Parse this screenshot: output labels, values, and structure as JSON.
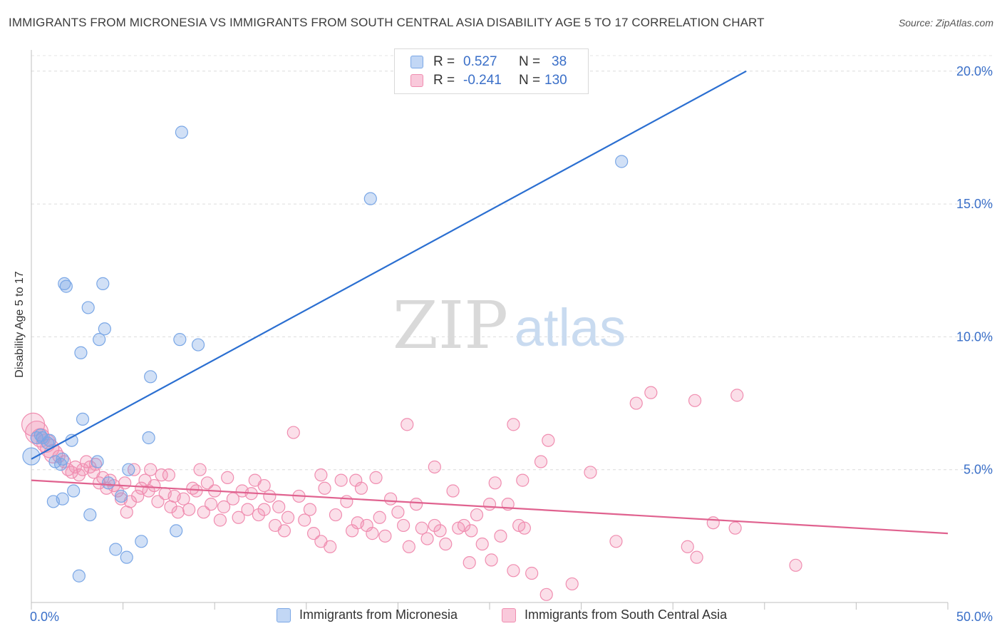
{
  "title": "IMMIGRANTS FROM MICRONESIA VS IMMIGRANTS FROM SOUTH CENTRAL ASIA DISABILITY AGE 5 TO 17 CORRELATION CHART",
  "source": "Source: ZipAtlas.com",
  "watermark": {
    "zip": "ZIP",
    "atlas": "atlas"
  },
  "legend_top": {
    "r_label": "R =",
    "n_label": "N =",
    "rows": [
      {
        "r": "0.527",
        "n": "38"
      },
      {
        "r": "-0.241",
        "n": "130"
      }
    ]
  },
  "chart_data": {
    "type": "scatter",
    "xlabel": "",
    "ylabel": "Disability Age 5 to 17",
    "xlim": [
      0,
      50
    ],
    "ylim": [
      0,
      20.8
    ],
    "x_ticks_labeled": [
      "0.0%",
      "50.0%"
    ],
    "y_ticks": [
      5,
      10,
      15,
      20
    ],
    "y_tick_labels": [
      "5.0%",
      "10.0%",
      "15.0%",
      "20.0%"
    ],
    "grid": "horizontal dashed",
    "legend_position": "bottom-center",
    "colors": {
      "micronesia": "#7aa7e6",
      "south_central_asia": "#f08db0",
      "micronesia_line": "#2b6fd1",
      "sca_line": "#e0628f"
    },
    "series": [
      {
        "name": "Immigrants from Micronesia",
        "color": "#7aa7e6",
        "trendline": {
          "x": [
            0,
            39
          ],
          "y": [
            5.4,
            20.0
          ]
        },
        "points": [
          [
            0.0,
            5.5
          ],
          [
            0.3,
            6.2
          ],
          [
            0.6,
            6.2
          ],
          [
            0.9,
            6.0
          ],
          [
            1.3,
            5.3
          ],
          [
            1.6,
            5.2
          ],
          [
            1.7,
            5.4
          ],
          [
            1.8,
            12.0
          ],
          [
            1.9,
            11.9
          ],
          [
            2.2,
            6.1
          ],
          [
            2.3,
            4.2
          ],
          [
            1.2,
            3.8
          ],
          [
            1.7,
            3.9
          ],
          [
            2.6,
            1.0
          ],
          [
            2.7,
            9.4
          ],
          [
            2.8,
            6.9
          ],
          [
            3.1,
            11.1
          ],
          [
            3.2,
            3.3
          ],
          [
            3.6,
            5.3
          ],
          [
            3.7,
            9.9
          ],
          [
            3.9,
            12.0
          ],
          [
            4.0,
            10.3
          ],
          [
            4.2,
            4.5
          ],
          [
            4.6,
            2.0
          ],
          [
            4.9,
            4.0
          ],
          [
            5.2,
            1.7
          ],
          [
            5.3,
            5.0
          ],
          [
            6.0,
            2.3
          ],
          [
            6.4,
            6.2
          ],
          [
            6.5,
            8.5
          ],
          [
            7.9,
            2.7
          ],
          [
            8.1,
            9.9
          ],
          [
            8.2,
            17.7
          ],
          [
            9.1,
            9.7
          ],
          [
            18.5,
            15.2
          ],
          [
            32.2,
            16.6
          ],
          [
            1.0,
            6.1
          ],
          [
            0.5,
            6.3
          ]
        ]
      },
      {
        "name": "Immigrants from South Central Asia",
        "color": "#f08db0",
        "trendline": {
          "x": [
            0,
            50
          ],
          "y": [
            4.6,
            2.6
          ]
        },
        "points": [
          [
            0.1,
            6.7
          ],
          [
            0.3,
            6.4
          ],
          [
            0.5,
            6.2
          ],
          [
            0.8,
            6.0
          ],
          [
            1.0,
            5.8
          ],
          [
            1.2,
            5.6
          ],
          [
            1.5,
            5.5
          ],
          [
            1.8,
            5.3
          ],
          [
            2.0,
            5.0
          ],
          [
            2.2,
            4.9
          ],
          [
            2.4,
            5.1
          ],
          [
            2.6,
            4.8
          ],
          [
            2.8,
            5.0
          ],
          [
            3.0,
            5.3
          ],
          [
            3.2,
            5.1
          ],
          [
            3.4,
            4.9
          ],
          [
            3.5,
            5.2
          ],
          [
            3.7,
            4.5
          ],
          [
            3.9,
            4.7
          ],
          [
            4.1,
            4.3
          ],
          [
            4.3,
            4.6
          ],
          [
            4.5,
            4.4
          ],
          [
            4.7,
            4.2
          ],
          [
            4.9,
            3.9
          ],
          [
            5.1,
            4.5
          ],
          [
            5.2,
            3.4
          ],
          [
            5.4,
            3.8
          ],
          [
            5.6,
            5.0
          ],
          [
            5.8,
            4.0
          ],
          [
            6.0,
            4.3
          ],
          [
            6.2,
            4.6
          ],
          [
            6.4,
            4.2
          ],
          [
            6.5,
            5.0
          ],
          [
            6.7,
            4.4
          ],
          [
            6.9,
            3.8
          ],
          [
            7.1,
            4.8
          ],
          [
            7.3,
            4.1
          ],
          [
            7.5,
            4.8
          ],
          [
            7.6,
            3.6
          ],
          [
            7.8,
            4.0
          ],
          [
            8.0,
            3.4
          ],
          [
            8.3,
            3.9
          ],
          [
            8.6,
            3.5
          ],
          [
            8.8,
            4.3
          ],
          [
            9.0,
            4.2
          ],
          [
            9.2,
            5.0
          ],
          [
            9.4,
            3.4
          ],
          [
            9.6,
            4.5
          ],
          [
            9.8,
            3.7
          ],
          [
            10.0,
            4.2
          ],
          [
            10.3,
            3.1
          ],
          [
            10.5,
            3.6
          ],
          [
            10.7,
            4.7
          ],
          [
            11.0,
            3.9
          ],
          [
            11.3,
            3.2
          ],
          [
            11.5,
            4.2
          ],
          [
            11.8,
            3.5
          ],
          [
            12.0,
            4.1
          ],
          [
            12.2,
            4.6
          ],
          [
            12.4,
            3.3
          ],
          [
            12.7,
            3.5
          ],
          [
            13.0,
            4.0
          ],
          [
            13.3,
            2.9
          ],
          [
            13.5,
            3.6
          ],
          [
            13.8,
            2.7
          ],
          [
            14.0,
            3.2
          ],
          [
            14.3,
            6.4
          ],
          [
            14.6,
            4.0
          ],
          [
            14.9,
            3.1
          ],
          [
            15.2,
            3.5
          ],
          [
            15.4,
            2.6
          ],
          [
            15.8,
            2.3
          ],
          [
            16.0,
            4.3
          ],
          [
            16.3,
            2.1
          ],
          [
            16.6,
            3.3
          ],
          [
            16.9,
            4.6
          ],
          [
            17.2,
            3.8
          ],
          [
            17.5,
            2.7
          ],
          [
            17.8,
            3.0
          ],
          [
            18.0,
            4.3
          ],
          [
            18.3,
            2.9
          ],
          [
            18.6,
            2.6
          ],
          [
            19.0,
            3.2
          ],
          [
            19.3,
            2.5
          ],
          [
            19.6,
            3.9
          ],
          [
            20.0,
            3.4
          ],
          [
            20.3,
            2.9
          ],
          [
            20.6,
            2.1
          ],
          [
            21.0,
            3.7
          ],
          [
            21.3,
            2.8
          ],
          [
            21.6,
            2.4
          ],
          [
            22.0,
            2.9
          ],
          [
            22.3,
            2.7
          ],
          [
            22.6,
            2.2
          ],
          [
            23.0,
            4.2
          ],
          [
            23.3,
            2.8
          ],
          [
            23.6,
            2.9
          ],
          [
            24.0,
            2.7
          ],
          [
            24.3,
            3.3
          ],
          [
            24.6,
            2.2
          ],
          [
            25.0,
            3.7
          ],
          [
            25.3,
            4.5
          ],
          [
            25.6,
            2.5
          ],
          [
            26.0,
            3.7
          ],
          [
            26.3,
            1.2
          ],
          [
            26.6,
            2.9
          ],
          [
            26.9,
            2.8
          ],
          [
            27.3,
            1.1
          ],
          [
            27.8,
            5.3
          ],
          [
            28.2,
            6.1
          ],
          [
            29.5,
            0.7
          ],
          [
            30.5,
            4.9
          ],
          [
            33.0,
            7.5
          ],
          [
            33.8,
            7.9
          ],
          [
            36.2,
            7.6
          ],
          [
            37.2,
            3.0
          ],
          [
            38.4,
            2.8
          ],
          [
            38.5,
            7.8
          ],
          [
            41.7,
            1.4
          ],
          [
            31.9,
            2.3
          ],
          [
            35.8,
            2.1
          ],
          [
            26.3,
            6.7
          ],
          [
            26.8,
            4.6
          ],
          [
            22.0,
            5.1
          ],
          [
            20.5,
            6.7
          ],
          [
            18.8,
            4.7
          ],
          [
            15.8,
            4.8
          ],
          [
            17.7,
            4.6
          ],
          [
            12.7,
            4.4
          ],
          [
            28.1,
            0.3
          ],
          [
            36.3,
            1.7
          ],
          [
            23.9,
            1.5
          ],
          [
            25.1,
            1.6
          ]
        ]
      }
    ]
  },
  "bottom_legend": [
    {
      "label": "Immigrants from Micronesia"
    },
    {
      "label": "Immigrants from South Central Asia"
    }
  ]
}
